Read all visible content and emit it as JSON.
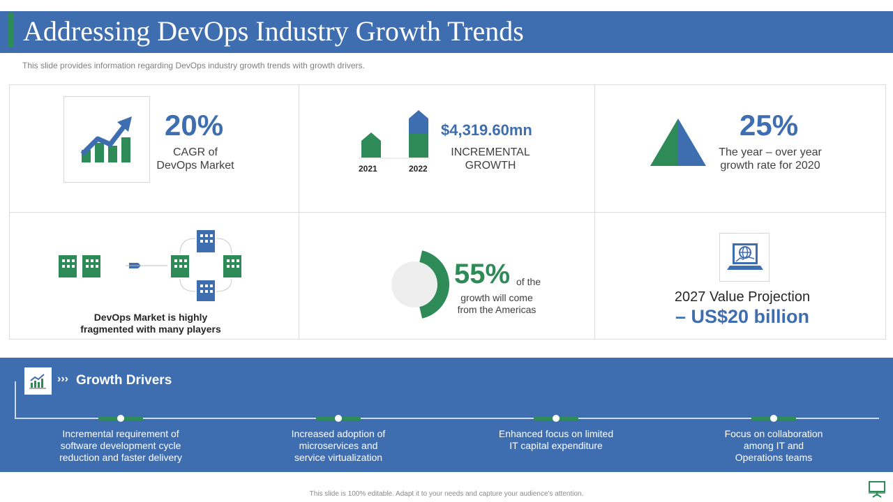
{
  "header": {
    "title": "Addressing DevOps Industry Growth Trends",
    "subtitle": "This slide provides  information  regarding  DevOps  industry  growth  trends  with  growth  drivers."
  },
  "stats": {
    "cagr": {
      "value": "20%",
      "label_line1": "CAGR of",
      "label_line2": "DevOps Market",
      "icon": "growth-chart-icon"
    },
    "incremental": {
      "value": "$4,319.60mn",
      "label_line1": "INCREMENTAL",
      "label_line2": "GROWTH",
      "year1": "2021",
      "year2": "2022",
      "icon": "bar-comparison-icon"
    },
    "yoy": {
      "value": "25%",
      "label_line1": "The year – over year",
      "label_line2": "growth rate for 2020",
      "icon": "pyramid-icon"
    },
    "fragmented": {
      "label_line1": "DevOps Market is highly",
      "label_line2": "fragmented with many players",
      "icon": "buildings-network-icon"
    },
    "americas": {
      "value": "55%",
      "suffix": "of the",
      "label_line2": "growth will come",
      "label_line3": "from the Americas",
      "fraction": 0.55,
      "icon": "donut-icon"
    },
    "projection": {
      "label_line1": "2027 Value  Projection",
      "value": "– US$20 billion",
      "icon": "globe-laptop-icon"
    }
  },
  "drivers": {
    "title": "Growth Drivers",
    "chevrons": "›››",
    "items": [
      {
        "line1": "Incremental requirement of",
        "line2": "software development cycle",
        "line3": "reduction and faster delivery"
      },
      {
        "line1": "Increased adoption of",
        "line2": "microservices and",
        "line3": "service virtualization"
      },
      {
        "line1": "Enhanced focus on limited",
        "line2": "IT capital expenditure",
        "line3": ""
      },
      {
        "line1": "Focus on collaboration",
        "line2": "among IT and",
        "line3": "Operations teams"
      }
    ]
  },
  "footer": {
    "text": "This slide is 100% editable. Adapt it to your needs and capture your audience's attention."
  },
  "colors": {
    "blue": "#3e6db0",
    "green": "#2e8b57",
    "grey": "#eeeeee"
  }
}
